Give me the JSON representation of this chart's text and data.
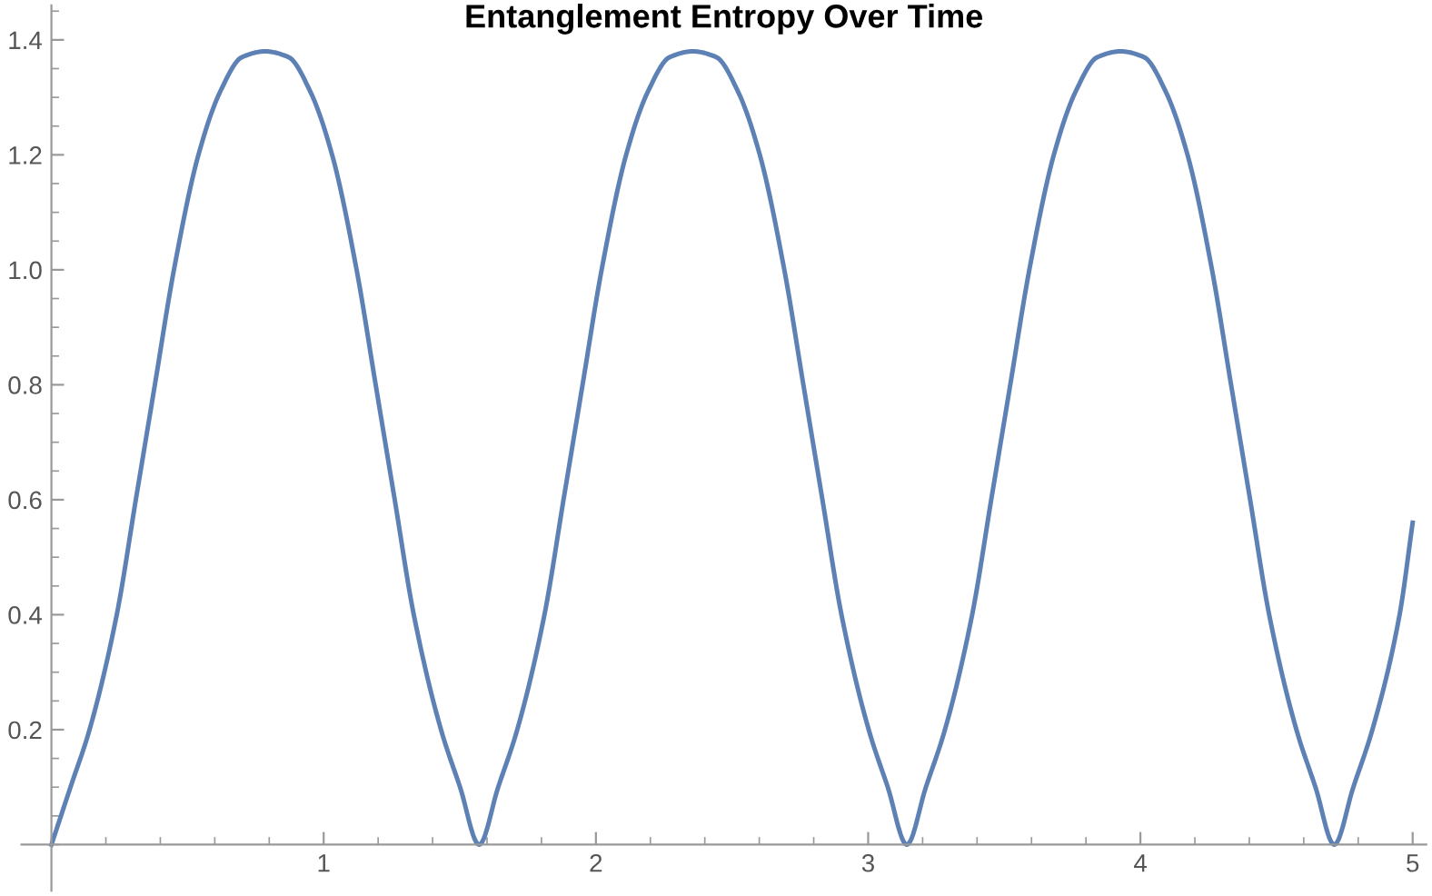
{
  "chart_data": {
    "type": "line",
    "title": "Entanglement Entropy Over Time",
    "xlim": [
      -0.11,
      5.05
    ],
    "ylim": [
      -0.08,
      1.46
    ],
    "xticks": [
      1,
      2,
      3,
      4,
      5
    ],
    "yticks": [
      0.2,
      0.4,
      0.6,
      0.8,
      {
        "value": 1,
        "label": "1.0"
      },
      1.2,
      1.4
    ],
    "grid": false,
    "marker": "none",
    "line_style": "solid",
    "series": [
      {
        "color": "#5e81b5",
        "x": [
          0,
          0.07,
          0.14,
          0.24,
          0.31,
          0.38,
          0.45,
          0.54,
          0.62,
          0.7,
          0.785,
          0.871,
          0.951,
          1.031,
          1.121,
          1.191,
          1.261,
          1.331,
          1.431,
          1.501,
          1.571,
          1.641,
          1.711,
          1.811,
          1.881,
          1.951,
          2.021,
          2.111,
          2.191,
          2.271,
          2.356,
          2.442,
          2.522,
          2.602,
          2.692,
          2.762,
          2.832,
          2.902,
          3.002,
          3.072,
          3.142,
          3.212,
          3.282,
          3.382,
          3.452,
          3.522,
          3.592,
          3.682,
          3.762,
          3.842,
          3.927,
          4.013,
          4.093,
          4.173,
          4.263,
          4.333,
          4.403,
          4.473,
          4.573,
          4.643,
          4.712,
          4.782,
          4.852,
          4.952,
          5
        ],
        "values": [
          0,
          0.1,
          0.2,
          0.4,
          0.6,
          0.8,
          1.0,
          1.2,
          1.31,
          1.37,
          1.38,
          1.37,
          1.31,
          1.2,
          1.0,
          0.8,
          0.6,
          0.4,
          0.2,
          0.1,
          0,
          0.1,
          0.2,
          0.4,
          0.6,
          0.8,
          1.0,
          1.2,
          1.31,
          1.37,
          1.38,
          1.37,
          1.31,
          1.2,
          1.0,
          0.8,
          0.6,
          0.4,
          0.2,
          0.1,
          0,
          0.1,
          0.2,
          0.4,
          0.6,
          0.8,
          1.0,
          1.2,
          1.31,
          1.37,
          1.38,
          1.37,
          1.31,
          1.2,
          1.0,
          0.8,
          0.6,
          0.4,
          0.2,
          0.1,
          0,
          0.1,
          0.2,
          0.4,
          0.56
        ]
      }
    ]
  }
}
